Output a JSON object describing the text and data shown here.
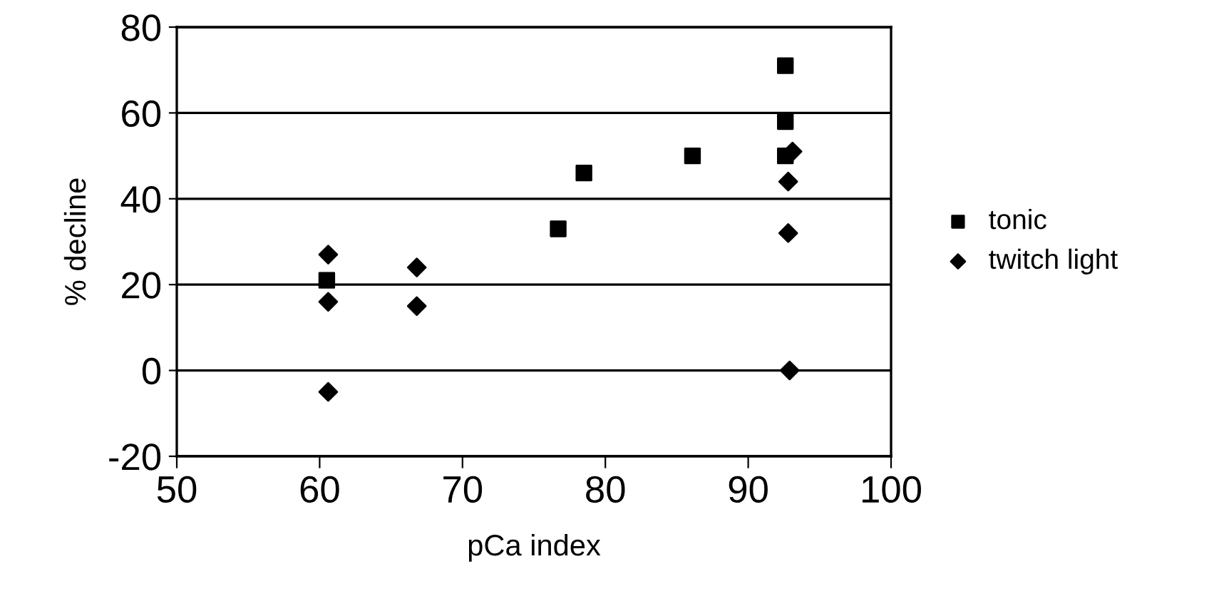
{
  "chart_data": {
    "type": "scatter",
    "xlabel": "pCa index",
    "ylabel": "% decline",
    "xlim": [
      50,
      100
    ],
    "xticks": [
      50,
      60,
      70,
      80,
      90,
      100
    ],
    "ylim": [
      -20,
      80
    ],
    "yticks": [
      -20,
      0,
      20,
      40,
      60,
      80
    ],
    "grid": "y",
    "legend": "right",
    "series": [
      {
        "name": "tonic",
        "color": "#000000",
        "marker": "square",
        "x": [
          60.5,
          76.7,
          78.5,
          86.1,
          92.6,
          92.6,
          92.6
        ],
        "values": [
          21,
          33,
          46,
          50,
          71,
          58,
          50
        ]
      },
      {
        "name": "twitch light",
        "color": "#000000",
        "marker": "diamond",
        "x": [
          60.6,
          60.6,
          60.6,
          66.8,
          66.8,
          93.1,
          92.8,
          92.8,
          92.9
        ],
        "values": [
          27,
          16,
          -5,
          24,
          15,
          51,
          44,
          32,
          0
        ]
      }
    ]
  }
}
